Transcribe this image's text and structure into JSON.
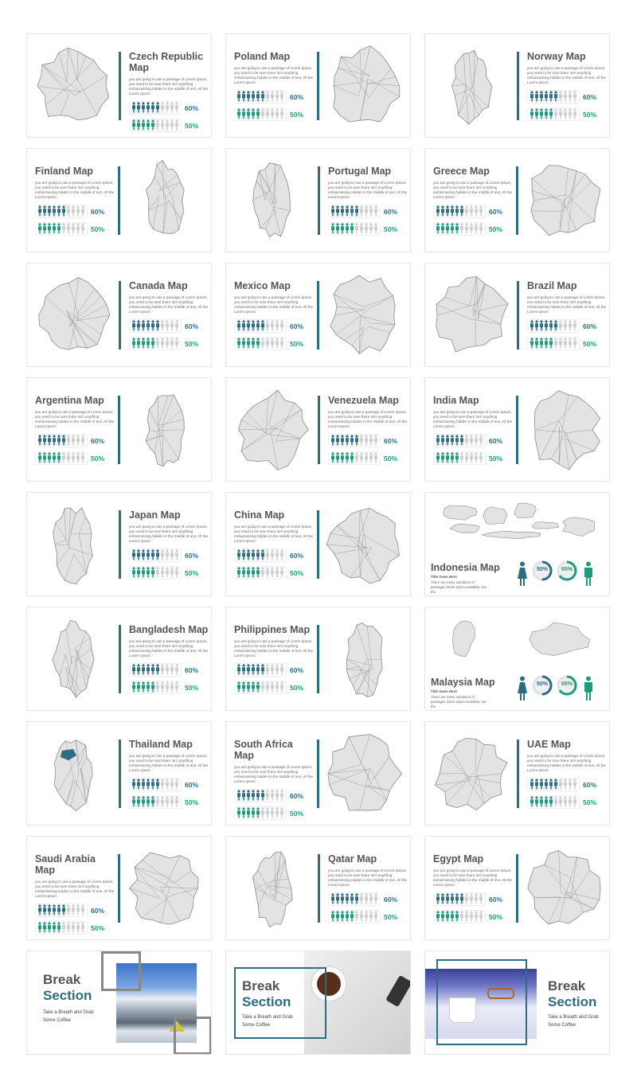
{
  "colors": {
    "blue": "#2e6c84",
    "green": "#1d9b7d",
    "map_fill": "#e3e3e3",
    "map_stroke": "#8a8a8a",
    "highlight": "#2e6c84",
    "grey_person": "#cfcfcf"
  },
  "common": {
    "desc": "you are going to use a passage of Lorem Ipsum, you need to be sure there isn't anything embarrassing hidden in the middle of text. All the Lorem Ipsum",
    "stat_blue": "60%",
    "stat_green": "50%",
    "blue_fill": 0.6,
    "green_fill": 0.5
  },
  "slides": [
    {
      "title": "Czech Republic Map",
      "layout": "map-left",
      "icon": "czech-republic-map-icon"
    },
    {
      "title": "Poland Map",
      "layout": "map-right",
      "icon": "poland-map-icon"
    },
    {
      "title": "Norway Map",
      "layout": "map-left",
      "icon": "norway-map-icon"
    },
    {
      "title": "Finland Map",
      "layout": "map-right",
      "icon": "finland-map-icon"
    },
    {
      "title": "Portugal Map",
      "layout": "map-left",
      "icon": "portugal-map-icon"
    },
    {
      "title": "Greece Map",
      "layout": "map-right",
      "icon": "greece-map-icon"
    },
    {
      "title": "Canada Map",
      "layout": "map-left",
      "icon": "canada-map-icon"
    },
    {
      "title": "Mexico Map",
      "layout": "map-right",
      "icon": "mexico-map-icon"
    },
    {
      "title": "Brazil Map",
      "layout": "map-left",
      "icon": "brazil-map-icon"
    },
    {
      "title": "Argentina Map",
      "layout": "map-right",
      "icon": "argentina-map-icon"
    },
    {
      "title": "Venezuela Map",
      "layout": "map-left",
      "icon": "venezuela-map-icon"
    },
    {
      "title": "India Map",
      "layout": "map-right",
      "icon": "india-map-icon"
    },
    {
      "title": "Japan Map",
      "layout": "map-left",
      "icon": "japan-map-icon"
    },
    {
      "title": "China Map",
      "layout": "map-right",
      "icon": "china-map-icon"
    },
    {
      "title": "Indonesia Map",
      "layout": "special",
      "icon": "indonesia-map-icon",
      "subtitle": "Title Goes Here",
      "desc": "There are many variations of passages lorem ipsum available, but the",
      "ring1": "50%",
      "ring2": "65%",
      "ring1_value": 0.5,
      "ring2_value": 0.65
    },
    {
      "title": "Bangladesh Map",
      "layout": "map-left",
      "icon": "bangladesh-map-icon"
    },
    {
      "title": "Philippines Map",
      "layout": "map-right",
      "icon": "philippines-map-icon"
    },
    {
      "title": "Malaysia Map",
      "layout": "special",
      "icon": "malaysia-map-icon",
      "subtitle": "Title Goes Here",
      "desc": "There are many variations of passages lorem ipsum available, but the",
      "ring1": "50%",
      "ring2": "65%",
      "ring1_value": 0.5,
      "ring2_value": 0.65
    },
    {
      "title": "Thailand Map",
      "layout": "map-left",
      "icon": "thailand-map-icon"
    },
    {
      "title": "South Africa Map",
      "layout": "map-right",
      "icon": "south-africa-map-icon"
    },
    {
      "title": "UAE Map",
      "layout": "map-left",
      "icon": "uae-map-icon"
    },
    {
      "title": "Saudi Arabia Map",
      "layout": "map-right",
      "icon": "saudi-arabia-map-icon"
    },
    {
      "title": "Qatar Map",
      "layout": "map-left",
      "icon": "qatar-map-icon"
    },
    {
      "title": "Egypt Map",
      "layout": "map-right",
      "icon": "egypt-map-icon"
    },
    {
      "layout": "break",
      "variant": "mountain",
      "line1": "Break",
      "line2": "Section",
      "sub": "Take a Breath and Grab Some Coffee",
      "icon": "mountain-photo"
    },
    {
      "layout": "break",
      "variant": "coffee-left",
      "line1": "Break",
      "line2": "Section",
      "sub": "Take a Breath and Grab Some Coffee",
      "icon": "coffee-photo"
    },
    {
      "layout": "break",
      "variant": "coffee-right",
      "line1": "Break",
      "line2": "Section",
      "sub": "Take a Breath and Grab Some Coffee",
      "icon": "coffee-glasses-photo"
    }
  ]
}
